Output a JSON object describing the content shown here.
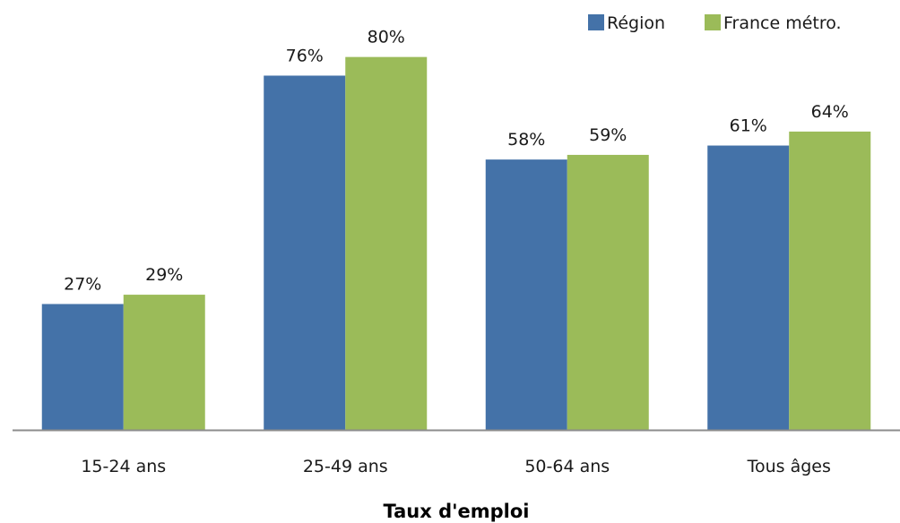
{
  "chart_data": {
    "type": "bar",
    "categories": [
      "15-24 ans",
      "25-49 ans",
      "50-64 ans",
      "Tous âges"
    ],
    "series": [
      {
        "name": "Région",
        "values": [
          27,
          76,
          58,
          61
        ],
        "labels": [
          "27%",
          "76%",
          "58%",
          "61%"
        ],
        "color": "#4472a8"
      },
      {
        "name": "France métro.",
        "values": [
          29,
          80,
          59,
          64
        ],
        "labels": [
          "29%",
          "80%",
          "59%",
          "64%"
        ],
        "color": "#9bbb59"
      }
    ],
    "title": "",
    "xlabel": "Taux d'emploi",
    "ylabel": "",
    "ylim": [
      0,
      88
    ],
    "grid": false,
    "legend": "top-right",
    "axis_color": "#8c8c8c"
  }
}
